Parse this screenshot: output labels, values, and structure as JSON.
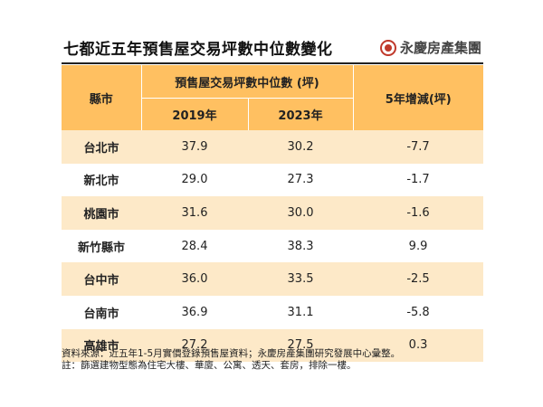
{
  "title": "七都近五年預售屋交易坪數中位數變化",
  "brand": {
    "name": "永慶房產集團",
    "logo_color": "#c0392b"
  },
  "table": {
    "headers": {
      "city": "縣市",
      "group": "預售屋交易坪數中位數 (坪)",
      "year_a": "2019年",
      "year_b": "2023年",
      "change": "5年增減(坪)"
    },
    "header_color": "#ffc061",
    "stripe_color": "#fde9c8",
    "rows": [
      {
        "city": "台北市",
        "y2019": "37.9",
        "y2023": "30.2",
        "change": "-7.7"
      },
      {
        "city": "新北市",
        "y2019": "29.0",
        "y2023": "27.3",
        "change": "-1.7"
      },
      {
        "city": "桃園市",
        "y2019": "31.6",
        "y2023": "30.0",
        "change": "-1.6"
      },
      {
        "city": "新竹縣市",
        "y2019": "28.4",
        "y2023": "38.3",
        "change": "9.9"
      },
      {
        "city": "台中市",
        "y2019": "36.0",
        "y2023": "33.5",
        "change": "-2.5"
      },
      {
        "city": "台南市",
        "y2019": "36.9",
        "y2023": "31.1",
        "change": "-5.8"
      },
      {
        "city": "高雄市",
        "y2019": "27.2",
        "y2023": "27.5",
        "change": "0.3"
      }
    ]
  },
  "notes": {
    "source": "資料來源：近五年1-5月實價登錄預售屋資料；永慶房產集團研究發展中心彙整。",
    "remark": "註：篩選建物型態為住宅大樓、華廈、公寓、透天、套房，排除一樓。"
  }
}
